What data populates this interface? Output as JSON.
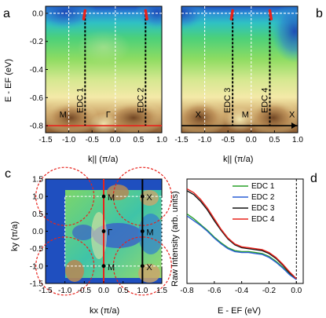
{
  "panels": {
    "a": "a",
    "b": "b",
    "c": "c",
    "d": "d"
  },
  "colors": {
    "map_blue": "#1f4fbf",
    "map_cyan": "#2fb7c9",
    "map_green": "#6fd36a",
    "map_yellow": "#f4e9a8",
    "map_brown": "#7a4e2a",
    "red_line": "#e8231c",
    "edc1": "#2aa02a",
    "edc2": "#2a5fd6",
    "edc3": "#111111",
    "edc4": "#e8231c"
  },
  "chart_data": [
    {
      "panel": "a",
      "type": "heatmap",
      "xlabel": "k|| (π/a)",
      "ylabel": "E - EF (eV)",
      "xlim": [
        -1.5,
        1.0
      ],
      "ylim": [
        -0.85,
        0.05
      ],
      "xticks": [
        "-1.5",
        "-1.0",
        "-0.5",
        "0.0",
        "0.5",
        "1.0"
      ],
      "yticks": [
        "0.0",
        "-0.2",
        "-0.4",
        "-0.6",
        "-0.8"
      ],
      "cut_labels": [
        "M",
        "Γ"
      ],
      "edc_labels": [
        "EDC 1",
        "EDC 2"
      ],
      "edc_k": [
        -0.65,
        0.65
      ],
      "band_crossing_k": [
        -0.65,
        0.65
      ]
    },
    {
      "panel": "b",
      "type": "heatmap",
      "xlabel": "k|| (π/a)",
      "ylabel": "",
      "xlim": [
        -1.5,
        1.0
      ],
      "ylim": [
        -0.85,
        0.05
      ],
      "xticks": [
        "-1.5",
        "-1.0",
        "-0.5",
        "0.0",
        "0.5",
        "1.0"
      ],
      "cut_labels": [
        "X",
        "M",
        "X"
      ],
      "edc_labels": [
        "EDC 3",
        "EDC 4"
      ],
      "edc_k": [
        -0.4,
        0.4
      ],
      "band_crossing_k": [
        -0.4,
        0.4
      ]
    },
    {
      "panel": "c",
      "type": "heatmap",
      "xlabel": "kx (π/a)",
      "ylabel": "ky (π/a)",
      "xlim": [
        -1.5,
        1.5
      ],
      "ylim": [
        -1.5,
        1.5
      ],
      "xticks": [
        "-1.5",
        "-1.0",
        "-0.5",
        "0.0",
        "0.5",
        "1.0",
        "1.5"
      ],
      "yticks": [
        "1.5",
        "1.0",
        "0.5",
        "0.0",
        "-0.5",
        "-1.0",
        "-1.5"
      ],
      "points": [
        {
          "label": "M",
          "x": 0,
          "y": 1
        },
        {
          "label": "Γ",
          "x": 0,
          "y": 0
        },
        {
          "label": "M",
          "x": 0,
          "y": -1
        },
        {
          "label": "X",
          "x": 1,
          "y": 1
        },
        {
          "label": "M",
          "x": 1,
          "y": 0
        },
        {
          "label": "X",
          "x": 1,
          "y": -1
        }
      ]
    },
    {
      "panel": "d",
      "type": "line",
      "xlabel": "E - EF (eV)",
      "ylabel": "Raw Intensity (arb. units)",
      "xlim": [
        -0.8,
        0.05
      ],
      "xticks": [
        "-0.8",
        "-0.6",
        "-0.4",
        "-0.2",
        "0.0"
      ],
      "x": [
        -0.8,
        -0.75,
        -0.7,
        -0.65,
        -0.6,
        -0.55,
        -0.5,
        -0.45,
        -0.4,
        -0.35,
        -0.3,
        -0.25,
        -0.2,
        -0.15,
        -0.1,
        -0.05,
        0.0
      ],
      "series": [
        {
          "name": "EDC 1",
          "color": "#2aa02a",
          "values": [
            0.72,
            0.67,
            0.61,
            0.55,
            0.48,
            0.42,
            0.37,
            0.34,
            0.33,
            0.33,
            0.32,
            0.31,
            0.28,
            0.23,
            0.17,
            0.1,
            0.05
          ]
        },
        {
          "name": "EDC 2",
          "color": "#2a5fd6",
          "values": [
            0.7,
            0.65,
            0.6,
            0.54,
            0.47,
            0.41,
            0.36,
            0.33,
            0.32,
            0.32,
            0.31,
            0.3,
            0.27,
            0.22,
            0.16,
            0.09,
            0.04
          ]
        },
        {
          "name": "EDC 3",
          "color": "#111111",
          "values": [
            0.96,
            0.92,
            0.85,
            0.76,
            0.65,
            0.55,
            0.46,
            0.4,
            0.37,
            0.36,
            0.35,
            0.34,
            0.31,
            0.26,
            0.19,
            0.11,
            0.05
          ]
        },
        {
          "name": "EDC 4",
          "color": "#e8231c",
          "values": [
            0.98,
            0.94,
            0.87,
            0.78,
            0.67,
            0.56,
            0.47,
            0.41,
            0.38,
            0.37,
            0.36,
            0.35,
            0.32,
            0.27,
            0.2,
            0.12,
            0.05
          ]
        }
      ]
    }
  ]
}
